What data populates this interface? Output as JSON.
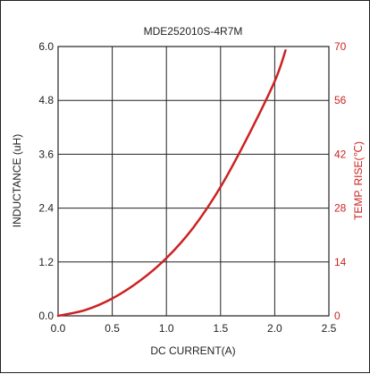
{
  "chart_data": {
    "type": "line",
    "title": "MDE252010S-4R7M",
    "xlabel": "DC CURRENT(A)",
    "ylabel": "INDUCTANCE (uH)",
    "y2label": "TEMP. RISE(℃)",
    "xlim": [
      0,
      2.5
    ],
    "ylim": [
      0,
      6.0
    ],
    "y2lim": [
      0,
      70
    ],
    "x_ticks": [
      "0.0",
      "0.5",
      "1.0",
      "1.5",
      "2.0",
      "2.5"
    ],
    "y_ticks": [
      "0.0",
      "1.2",
      "2.4",
      "3.6",
      "4.8",
      "6.0"
    ],
    "y2_ticks": [
      "0",
      "14",
      "28",
      "42",
      "56",
      "70"
    ],
    "grid": true,
    "series": [
      {
        "axis": "right",
        "color": "#cc2222",
        "x": [
          0.0,
          0.25,
          0.5,
          0.75,
          1.0,
          1.25,
          1.5,
          1.75,
          2.0,
          2.1
        ],
        "y": [
          0.0,
          1.5,
          4.5,
          9.0,
          15.0,
          23.0,
          33.5,
          46.5,
          61.0,
          69.0
        ]
      }
    ]
  }
}
